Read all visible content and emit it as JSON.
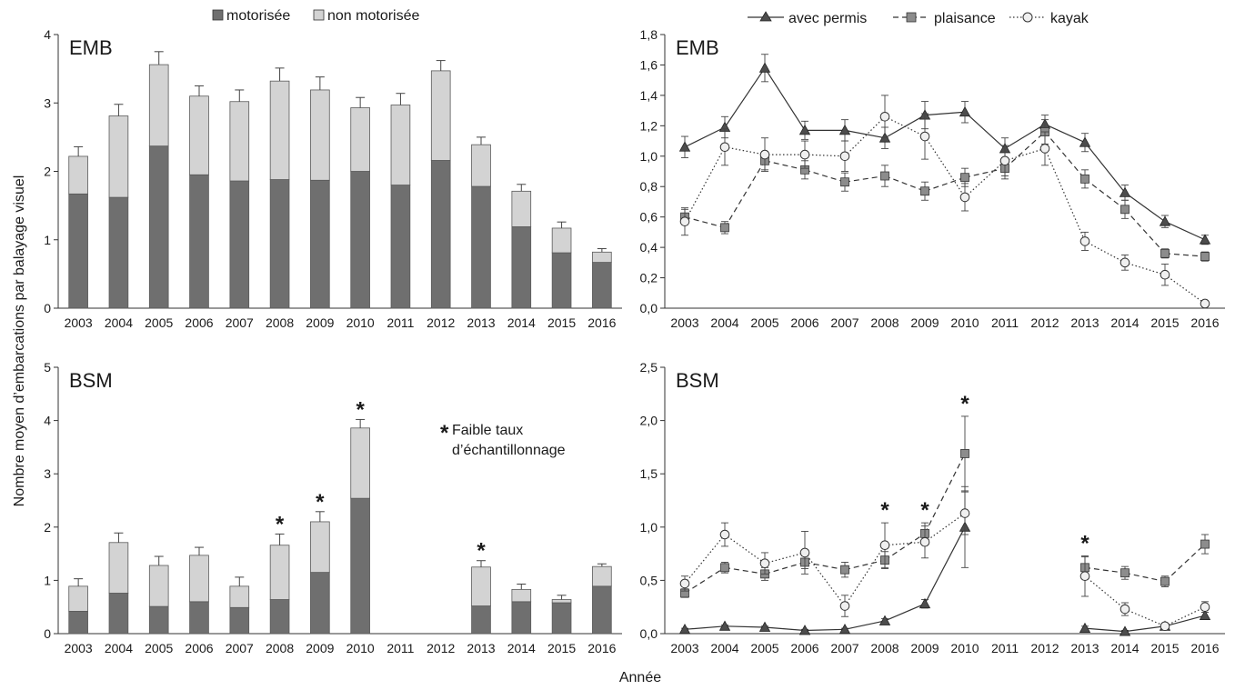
{
  "figure": {
    "ylabel": "Nombre moyen d’embarcations par balayage visuel",
    "xlabel": "Année"
  },
  "legend_bars": [
    {
      "label": "motorisée",
      "color": "#6f6f6f"
    },
    {
      "label": "non motorisée",
      "color": "#d3d3d3"
    }
  ],
  "legend_lines": [
    {
      "label": "avec permis",
      "marker": "triangle",
      "dash": "solid",
      "color": "#4d4d4d"
    },
    {
      "label": "plaisance",
      "marker": "square",
      "dash": "dashed",
      "color": "#8c8c8c"
    },
    {
      "label": "kayak",
      "marker": "circle",
      "dash": "dotted",
      "color": "#d9d9d9"
    }
  ],
  "note": {
    "star": "*",
    "line1": "Faible taux",
    "line2": "d’échantillonnage"
  },
  "chart_data": [
    {
      "type": "bar",
      "stacked": true,
      "title": "EMB",
      "categories": [
        "2003",
        "2004",
        "2005",
        "2006",
        "2007",
        "2008",
        "2009",
        "2010",
        "2011",
        "2012",
        "2013",
        "2014",
        "2015",
        "2016"
      ],
      "ylim": [
        0,
        4
      ],
      "yticks": [
        "0",
        "1",
        "2",
        "3",
        "4"
      ],
      "series": [
        {
          "name": "motorisée",
          "values": [
            1.67,
            1.62,
            2.37,
            1.95,
            1.86,
            1.88,
            1.87,
            2.0,
            1.8,
            2.16,
            1.78,
            1.19,
            0.81,
            0.67
          ]
        },
        {
          "name": "non motorisée",
          "values": [
            0.55,
            1.19,
            1.19,
            1.15,
            1.16,
            1.44,
            1.32,
            0.93,
            1.17,
            1.31,
            0.61,
            0.52,
            0.36,
            0.15
          ]
        }
      ],
      "error_top": [
        0.14,
        0.17,
        0.19,
        0.15,
        0.17,
        0.19,
        0.19,
        0.15,
        0.17,
        0.15,
        0.11,
        0.1,
        0.09,
        0.05
      ],
      "starred": []
    },
    {
      "type": "line",
      "title": "EMB",
      "categories": [
        "2003",
        "2004",
        "2005",
        "2006",
        "2007",
        "2008",
        "2009",
        "2010",
        "2011",
        "2012",
        "2013",
        "2014",
        "2015",
        "2016"
      ],
      "ylim": [
        0,
        1.8
      ],
      "yticks": [
        "0,0",
        "0,2",
        "0,4",
        "0,6",
        "0,8",
        "1,0",
        "1,2",
        "1,4",
        "1,6",
        "1,8"
      ],
      "series": [
        {
          "name": "avec permis",
          "values": [
            1.06,
            1.19,
            1.58,
            1.17,
            1.17,
            1.12,
            1.27,
            1.29,
            1.05,
            1.21,
            1.09,
            0.76,
            0.57,
            0.45
          ],
          "err": [
            0.07,
            0.07,
            0.09,
            0.06,
            0.07,
            0.07,
            0.09,
            0.07,
            0.07,
            0.06,
            0.06,
            0.05,
            0.04,
            0.03
          ]
        },
        {
          "name": "plaisance",
          "values": [
            0.6,
            0.53,
            0.97,
            0.91,
            0.83,
            0.87,
            0.77,
            0.86,
            0.92,
            1.16,
            0.85,
            0.65,
            0.36,
            0.34
          ],
          "err": [
            0.05,
            0.04,
            0.06,
            0.06,
            0.06,
            0.07,
            0.06,
            0.06,
            0.07,
            0.08,
            0.06,
            0.06,
            0.03,
            0.03
          ]
        },
        {
          "name": "kayak",
          "values": [
            0.57,
            1.06,
            1.01,
            1.01,
            1.0,
            1.26,
            1.13,
            0.73,
            0.97,
            1.05,
            0.44,
            0.3,
            0.22,
            0.03
          ],
          "err": [
            0.09,
            0.12,
            0.11,
            0.09,
            0.1,
            0.14,
            0.15,
            0.09,
            0.1,
            0.11,
            0.06,
            0.05,
            0.07,
            0.02
          ]
        }
      ],
      "starred": []
    },
    {
      "type": "bar",
      "stacked": true,
      "title": "BSM",
      "categories": [
        "2003",
        "2004",
        "2005",
        "2006",
        "2007",
        "2008",
        "2009",
        "2010",
        "2011",
        "2012",
        "2013",
        "2014",
        "2015",
        "2016"
      ],
      "ylim": [
        0,
        5
      ],
      "yticks": [
        "0",
        "1",
        "2",
        "3",
        "4",
        "5"
      ],
      "series": [
        {
          "name": "motorisée",
          "values": [
            0.42,
            0.76,
            0.51,
            0.6,
            0.49,
            0.64,
            1.15,
            2.54,
            null,
            null,
            0.52,
            0.6,
            0.58,
            0.89
          ]
        },
        {
          "name": "non motorisée",
          "values": [
            0.47,
            0.95,
            0.77,
            0.87,
            0.4,
            1.02,
            0.95,
            1.32,
            null,
            null,
            0.73,
            0.23,
            0.06,
            0.37
          ]
        }
      ],
      "error_top": [
        0.14,
        0.18,
        0.17,
        0.15,
        0.17,
        0.21,
        0.19,
        0.16,
        null,
        null,
        0.12,
        0.1,
        0.08,
        0.05
      ],
      "starred": [
        "2008",
        "2009",
        "2010",
        "2013"
      ]
    },
    {
      "type": "line",
      "title": "BSM",
      "categories": [
        "2003",
        "2004",
        "2005",
        "2006",
        "2007",
        "2008",
        "2009",
        "2010",
        "2011",
        "2012",
        "2013",
        "2014",
        "2015",
        "2016"
      ],
      "ylim": [
        0,
        2.5
      ],
      "yticks": [
        "0,0",
        "0,5",
        "1,0",
        "1,5",
        "2,0",
        "2,5"
      ],
      "series": [
        {
          "name": "avec permis",
          "values": [
            0.04,
            0.07,
            0.06,
            0.03,
            0.04,
            0.12,
            0.28,
            1.0,
            null,
            null,
            0.05,
            0.02,
            0.07,
            0.17
          ],
          "err": [
            0.01,
            0.01,
            0.01,
            0.01,
            0.01,
            0.02,
            0.04,
            0.38,
            null,
            null,
            0.02,
            0.01,
            0.02,
            0.03
          ]
        },
        {
          "name": "plaisance",
          "values": [
            0.38,
            0.62,
            0.56,
            0.67,
            0.6,
            0.69,
            0.94,
            1.69,
            null,
            null,
            0.62,
            0.57,
            0.49,
            0.84
          ],
          "err": [
            0.04,
            0.05,
            0.06,
            0.06,
            0.07,
            0.08,
            0.1,
            0.35,
            null,
            null,
            0.1,
            0.06,
            0.05,
            0.09
          ]
        },
        {
          "name": "kayak",
          "values": [
            0.47,
            0.93,
            0.66,
            0.76,
            0.26,
            0.83,
            0.86,
            1.13,
            null,
            null,
            0.54,
            0.23,
            0.07,
            0.25
          ],
          "err": [
            0.07,
            0.11,
            0.1,
            0.2,
            0.1,
            0.21,
            0.15,
            0.2,
            null,
            null,
            0.19,
            0.06,
            0.02,
            0.05
          ]
        }
      ],
      "starred": [
        "2008",
        "2009",
        "2010",
        "2013"
      ]
    }
  ]
}
